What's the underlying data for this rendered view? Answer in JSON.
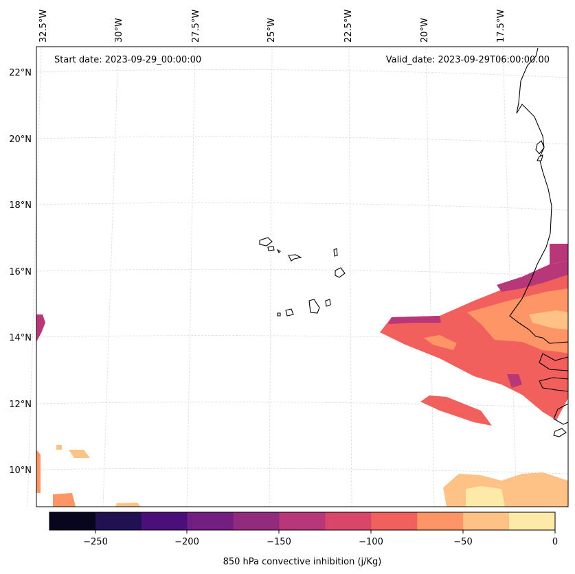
{
  "header": {
    "start_date": "Start date: 2023-09-29_00:00:00",
    "valid_date": "Valid_date: 2023-09-29T06:00:00.00"
  },
  "map": {
    "lon_labels": [
      "32.5°W",
      "30°W",
      "27.5°W",
      "25°W",
      "22.5°W",
      "20°W",
      "17.5°W"
    ],
    "lat_labels": [
      "22°N",
      "20°N",
      "18°N",
      "16°N",
      "14°N",
      "12°N",
      "10°N"
    ]
  },
  "colorbar": {
    "label": "850 hPa convective inhibition (j/Kg)",
    "ticks": [
      "−250",
      "−200",
      "−150",
      "−100",
      "−50",
      "0"
    ],
    "bins": [
      {
        "from": -275,
        "to": -250,
        "color": "#07061c"
      },
      {
        "from": -250,
        "to": -225,
        "color": "#221150"
      },
      {
        "from": -225,
        "to": -200,
        "color": "#4b0f7a"
      },
      {
        "from": -200,
        "to": -175,
        "color": "#721f81"
      },
      {
        "from": -175,
        "to": -150,
        "color": "#922b7e"
      },
      {
        "from": -150,
        "to": -125,
        "color": "#b73779"
      },
      {
        "from": -125,
        "to": -100,
        "color": "#da466a"
      },
      {
        "from": -100,
        "to": -75,
        "color": "#f1605d"
      },
      {
        "from": -75,
        "to": -50,
        "color": "#fd9567"
      },
      {
        "from": -50,
        "to": -25,
        "color": "#fec287"
      },
      {
        "from": -25,
        "to": 0,
        "color": "#fde9a8"
      }
    ]
  }
}
